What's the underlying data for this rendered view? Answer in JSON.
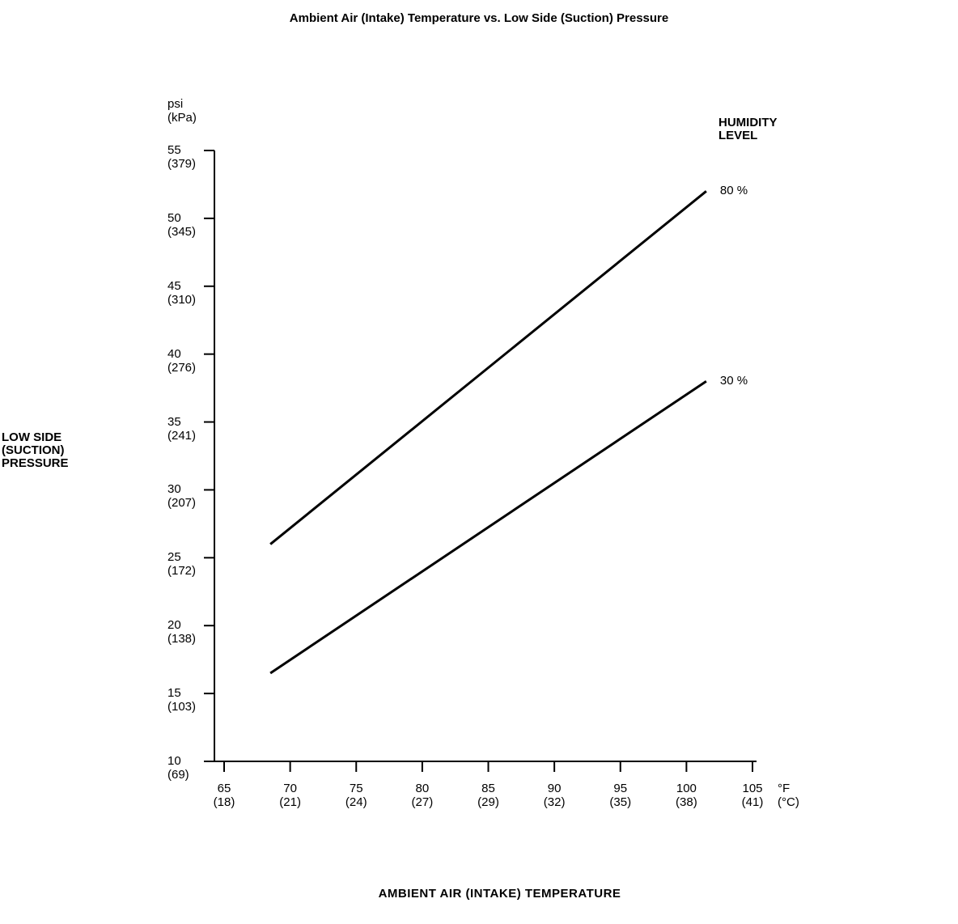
{
  "page": {
    "background": "#ffffff",
    "foreground": "#000000"
  },
  "chart_data": {
    "type": "line",
    "title": "Ambient Air (Intake) Temperature vs. Low Side (Suction) Pressure",
    "xlabel": "AMBIENT AIR (INTAKE) TEMPERATURE",
    "ylabel": "LOW SIDE\n(SUCTION)\nPRESSURE",
    "y_unit": "psi\n(kPa)",
    "x_unit": "°F\n(°C)",
    "legend_title": "HUMIDITY\nLEVEL",
    "legend_position": "top-right",
    "grid": false,
    "line_color": "#000000",
    "xlim": [
      65,
      105
    ],
    "ylim": [
      10,
      55
    ],
    "x_ticks": [
      {
        "f": 65,
        "c": 18
      },
      {
        "f": 70,
        "c": 21
      },
      {
        "f": 75,
        "c": 24
      },
      {
        "f": 80,
        "c": 27
      },
      {
        "f": 85,
        "c": 29
      },
      {
        "f": 90,
        "c": 32
      },
      {
        "f": 95,
        "c": 35
      },
      {
        "f": 100,
        "c": 38
      },
      {
        "f": 105,
        "c": 41
      }
    ],
    "y_ticks": [
      {
        "psi": 55,
        "kpa": 379
      },
      {
        "psi": 50,
        "kpa": 345
      },
      {
        "psi": 45,
        "kpa": 310
      },
      {
        "psi": 40,
        "kpa": 276
      },
      {
        "psi": 35,
        "kpa": 241
      },
      {
        "psi": 30,
        "kpa": 207
      },
      {
        "psi": 25,
        "kpa": 172
      },
      {
        "psi": 20,
        "kpa": 138
      },
      {
        "psi": 15,
        "kpa": 103
      },
      {
        "psi": 10,
        "kpa": 69
      }
    ],
    "series": [
      {
        "name": "80 %",
        "humidity_percent": 80,
        "points": [
          [
            68.5,
            26
          ],
          [
            101.5,
            52
          ]
        ]
      },
      {
        "name": "30 %",
        "humidity_percent": 30,
        "points": [
          [
            68.5,
            16.5
          ],
          [
            101.5,
            38
          ]
        ]
      }
    ]
  }
}
